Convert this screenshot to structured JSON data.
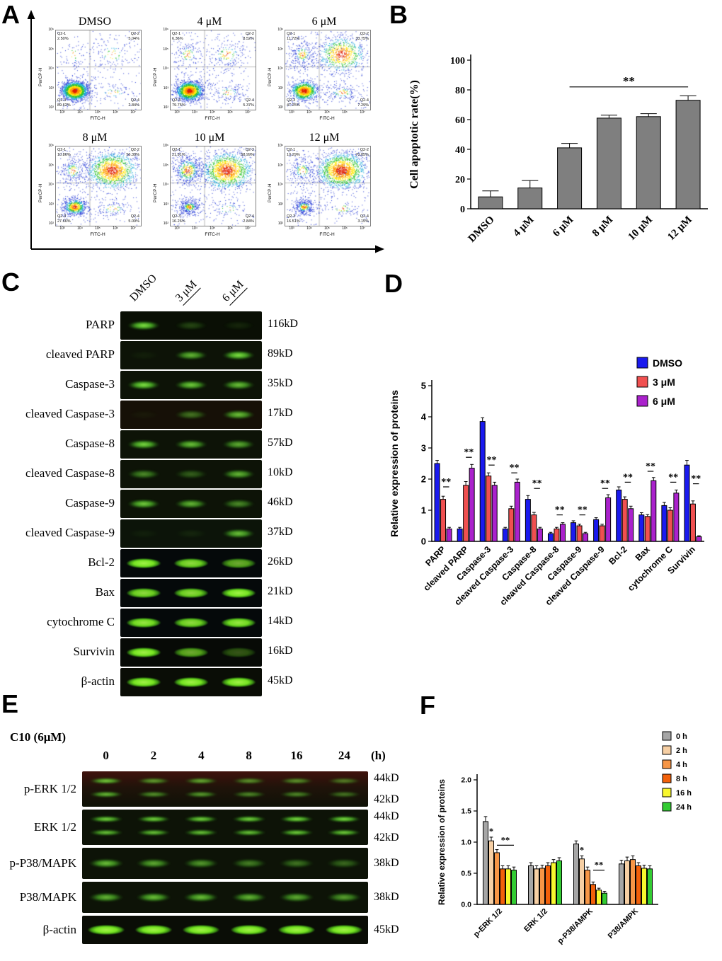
{
  "panels": {
    "A": {
      "label": "A",
      "x_axis_label": "FITC-H",
      "y_axis_label": "PerCP-H",
      "y_ticks": [
        "10⁶",
        "10⁵",
        "10⁴",
        "10³",
        "10²"
      ],
      "x_ticks": [
        "10³",
        "10⁴",
        "10⁵",
        "10⁶",
        "10⁷"
      ],
      "quad_names": [
        "Q2-1",
        "Q2-2",
        "Q2-3",
        "Q2-4"
      ],
      "plots": [
        {
          "title": "DMSO",
          "quads": {
            "Q2-1": "2.50%",
            "Q2-2": "5.04%",
            "Q2-3": "89.62%",
            "Q2-4": "2.84%"
          }
        },
        {
          "title": "4 μM",
          "quads": {
            "Q2-1": "6.36%",
            "Q2-2": "8.52%",
            "Q2-3": "79.75%",
            "Q2-4": "5.37%"
          }
        },
        {
          "title": "6 μM",
          "quads": {
            "Q2-1": "11.72%",
            "Q2-2": "33.75%",
            "Q2-3": "47.25%",
            "Q2-4": "7.29%"
          }
        },
        {
          "title": "8 μM",
          "quads": {
            "Q2-1": "10.86%",
            "Q2-2": "56.39%",
            "Q2-3": "27.66%",
            "Q2-4": "5.09%"
          }
        },
        {
          "title": "10 μM",
          "quads": {
            "Q2-1": "21.91%",
            "Q2-2": "58.99%",
            "Q2-3": "16.26%",
            "Q2-4": "2.84%"
          }
        },
        {
          "title": "12 μM",
          "quads": {
            "Q2-1": "10.29%",
            "Q2-2": "70.05%",
            "Q2-3": "16.51%",
            "Q2-4": "3.15%"
          }
        }
      ]
    },
    "B": {
      "label": "B"
    },
    "C": {
      "label": "C",
      "lanes": [
        "DMSO",
        "3 μM",
        "6 μM"
      ],
      "underline": [
        false,
        true,
        true
      ],
      "rows": [
        {
          "protein": "PARP",
          "kd": "116kD",
          "bands": [
            0.95,
            0.25,
            0.1
          ],
          "style": "smear",
          "bg": "#0a0f05"
        },
        {
          "protein": "cleaved PARP",
          "kd": "89kD",
          "bands": [
            0.05,
            0.75,
            0.95
          ],
          "style": "smear"
        },
        {
          "protein": "Caspase-3",
          "kd": "35kD",
          "bands": [
            0.95,
            0.85,
            0.8
          ],
          "style": "smear"
        },
        {
          "protein": "cleaved Caspase-3",
          "kd": "17kD",
          "bands": [
            0.04,
            0.45,
            0.8
          ],
          "style": "smear",
          "bg": "#161007"
        },
        {
          "protein": "Caspase-8",
          "kd": "57kD",
          "bands": [
            0.9,
            0.8,
            0.7
          ],
          "style": "smear"
        },
        {
          "protein": "cleaved Caspase-8",
          "kd": "10kD",
          "bands": [
            0.55,
            0.35,
            0.75
          ],
          "style": "smear"
        },
        {
          "protein": "Caspase-9",
          "kd": "46kD",
          "bands": [
            0.85,
            0.75,
            0.55
          ],
          "style": "smear"
        },
        {
          "protein": "cleaved Caspase-9",
          "kd": "37kD",
          "bands": [
            0.05,
            0.08,
            0.8
          ],
          "style": "smear",
          "bg": "#0c1409"
        },
        {
          "protein": "Bcl-2",
          "kd": "26kD",
          "bands": [
            0.95,
            0.85,
            0.65
          ],
          "style": "solid",
          "bg": "#05090a"
        },
        {
          "protein": "Bax",
          "kd": "21kD",
          "bands": [
            0.85,
            0.85,
            0.95
          ],
          "style": "solid",
          "bg": "#05090a"
        },
        {
          "protein": "cytochrome C",
          "kd": "14kD",
          "bands": [
            0.9,
            0.85,
            0.9
          ],
          "style": "solid",
          "bg": "#05090a"
        },
        {
          "protein": "Survivin",
          "kd": "16kD",
          "bands": [
            0.95,
            0.65,
            0.3
          ],
          "style": "solid",
          "bg": "#070a06"
        },
        {
          "protein": "β-actin",
          "kd": "45kD",
          "bands": [
            0.95,
            0.95,
            0.95
          ],
          "style": "solid",
          "bg": "#0a0d06"
        }
      ]
    },
    "D": {
      "label": "D"
    },
    "E": {
      "label": "E",
      "treatment": "C10",
      "treatment_dose": "(6μM)",
      "time_points": [
        "0",
        "2",
        "4",
        "8",
        "16",
        "24"
      ],
      "time_unit": "(h)",
      "rows": [
        {
          "protein": "p-ERK 1/2",
          "kd": [
            "44kD",
            "42kD"
          ],
          "double": true,
          "tint": true,
          "bands": [
            0.85,
            0.65,
            0.7,
            0.6,
            0.6,
            0.5
          ]
        },
        {
          "protein": "ERK 1/2",
          "kd": [
            "44kD",
            "42kD"
          ],
          "double": true,
          "bands": [
            0.9,
            0.9,
            0.9,
            0.9,
            0.95,
            0.95
          ]
        },
        {
          "protein": "p-P38/MAPK",
          "kd": [
            "38kD"
          ],
          "bands": [
            0.8,
            0.7,
            0.62,
            0.5,
            0.45,
            0.4
          ]
        },
        {
          "protein": "P38/MAPK",
          "kd": [
            "38kD"
          ],
          "bands": [
            0.75,
            0.8,
            0.8,
            0.75,
            0.7,
            0.65
          ]
        },
        {
          "protein": "β-actin",
          "kd": [
            "45kD"
          ],
          "bands": [
            0.95,
            0.95,
            0.95,
            0.95,
            0.95,
            0.95
          ]
        }
      ]
    },
    "F": {
      "label": "F"
    }
  },
  "chart_data": [
    {
      "id": "B",
      "type": "bar",
      "categories": [
        "DMSO",
        "4 μM",
        "6 μM",
        "8 μM",
        "10 μM",
        "12 μM"
      ],
      "series": [
        {
          "name": "Cell apoptotic rate",
          "color": "#7f7f7f",
          "values": [
            8,
            14,
            41,
            61,
            62,
            73
          ],
          "errors": [
            4,
            5,
            3,
            2,
            2,
            3
          ]
        }
      ],
      "ylabel": "Cell apoptotic rate(%)",
      "ylim": [
        0,
        100
      ],
      "yticks": [
        0,
        20,
        40,
        60,
        80,
        100
      ],
      "annotations": [
        {
          "type": "line",
          "from": [
            2,
            0
          ],
          "to": [
            5,
            0
          ],
          "y": 82,
          "text": "**"
        }
      ]
    },
    {
      "id": "D",
      "type": "grouped-bar",
      "categories": [
        "PARP",
        "cleaved PARP",
        "Caspase-3",
        "cleaved Caspase-3",
        "Caspase-8",
        "cleaved Caspase-8",
        "Caspase-9",
        "cleaved Caspase-9",
        "Bcl-2",
        "Bax",
        "cytochrome C",
        "Survivin"
      ],
      "series": [
        {
          "name": "DMSO",
          "color": "#1a1aee",
          "values": [
            2.5,
            0.4,
            3.85,
            0.4,
            1.35,
            0.25,
            0.6,
            0.7,
            1.65,
            0.85,
            1.15,
            2.45
          ],
          "errors": [
            0.1,
            0.05,
            0.12,
            0.05,
            0.12,
            0.04,
            0.06,
            0.06,
            0.1,
            0.07,
            0.1,
            0.15
          ]
        },
        {
          "name": "3 μM",
          "color": "#f05050",
          "values": [
            1.35,
            1.8,
            2.1,
            1.05,
            0.85,
            0.4,
            0.5,
            0.5,
            1.35,
            0.8,
            1.0,
            1.2
          ],
          "errors": [
            0.1,
            0.12,
            0.1,
            0.08,
            0.08,
            0.05,
            0.05,
            0.05,
            0.08,
            0.06,
            0.08,
            0.1
          ]
        },
        {
          "name": "6 μM",
          "color": "#aa22cc",
          "values": [
            0.4,
            2.35,
            1.8,
            1.9,
            0.4,
            0.55,
            0.25,
            1.4,
            1.05,
            1.95,
            1.55,
            0.15
          ],
          "errors": [
            0.05,
            0.12,
            0.1,
            0.1,
            0.05,
            0.05,
            0.04,
            0.1,
            0.08,
            0.1,
            0.1,
            0.03
          ]
        }
      ],
      "ylabel": "Relative expression of proteins",
      "ylim": [
        0,
        5
      ],
      "yticks": [
        0,
        1,
        2,
        3,
        4,
        5
      ],
      "annotations": [
        {
          "type": "line",
          "from": [
            0,
            1
          ],
          "to": [
            0,
            2
          ],
          "y": 1.75,
          "text": "**"
        },
        {
          "type": "line",
          "from": [
            1,
            1
          ],
          "to": [
            1,
            2
          ],
          "y": 2.7,
          "text": "**"
        },
        {
          "type": "line",
          "from": [
            2,
            1
          ],
          "to": [
            2,
            2
          ],
          "y": 2.45,
          "text": "**"
        },
        {
          "type": "line",
          "from": [
            3,
            1
          ],
          "to": [
            3,
            2
          ],
          "y": 2.2,
          "text": "**"
        },
        {
          "type": "line",
          "from": [
            4,
            1
          ],
          "to": [
            4,
            2
          ],
          "y": 1.7,
          "text": "**"
        },
        {
          "type": "line",
          "from": [
            5,
            1
          ],
          "to": [
            5,
            2
          ],
          "y": 0.85,
          "text": "**"
        },
        {
          "type": "line",
          "from": [
            6,
            1
          ],
          "to": [
            6,
            2
          ],
          "y": 0.85,
          "text": "**"
        },
        {
          "type": "line",
          "from": [
            7,
            1
          ],
          "to": [
            7,
            2
          ],
          "y": 1.7,
          "text": "**"
        },
        {
          "type": "line",
          "from": [
            8,
            1
          ],
          "to": [
            8,
            2
          ],
          "y": 1.9,
          "text": "**"
        },
        {
          "type": "line",
          "from": [
            9,
            1
          ],
          "to": [
            9,
            2
          ],
          "y": 2.25,
          "text": "**"
        },
        {
          "type": "line",
          "from": [
            10,
            1
          ],
          "to": [
            10,
            2
          ],
          "y": 1.9,
          "text": "**"
        },
        {
          "type": "line",
          "from": [
            11,
            1
          ],
          "to": [
            11,
            2
          ],
          "y": 1.85,
          "text": "**"
        }
      ]
    },
    {
      "id": "F",
      "type": "grouped-bar",
      "categories": [
        "p-ERK 1/2",
        "ERK 1/2",
        "p-P38/AMPK",
        "P38/AMPK"
      ],
      "series": [
        {
          "name": "0 h",
          "color": "#a6a6a6",
          "values": [
            1.33,
            0.62,
            0.97,
            0.65
          ],
          "errors": [
            0.08,
            0.05,
            0.05,
            0.06
          ]
        },
        {
          "name": "2 h",
          "color": "#f6cfa4",
          "values": [
            1.02,
            0.57,
            0.73,
            0.7
          ],
          "errors": [
            0.06,
            0.05,
            0.05,
            0.06
          ]
        },
        {
          "name": "4 h",
          "color": "#f79646",
          "values": [
            0.83,
            0.58,
            0.55,
            0.72
          ],
          "errors": [
            0.05,
            0.05,
            0.05,
            0.06
          ]
        },
        {
          "name": "8 h",
          "color": "#f2600a",
          "values": [
            0.57,
            0.62,
            0.32,
            0.62
          ],
          "errors": [
            0.05,
            0.05,
            0.04,
            0.05
          ]
        },
        {
          "name": "16 h",
          "color": "#f8f72e",
          "values": [
            0.57,
            0.67,
            0.23,
            0.58
          ],
          "errors": [
            0.05,
            0.05,
            0.03,
            0.05
          ]
        },
        {
          "name": "24 h",
          "color": "#33cc33",
          "values": [
            0.55,
            0.7,
            0.18,
            0.57
          ],
          "errors": [
            0.05,
            0.05,
            0.03,
            0.05
          ]
        }
      ],
      "ylabel": "Relative expression of proteins",
      "ylim": [
        0,
        2
      ],
      "yticks": [
        0,
        0.5,
        1,
        1.5,
        2
      ],
      "annotations": [
        {
          "type": "star",
          "at": [
            0,
            1
          ],
          "text": "*"
        },
        {
          "type": "line",
          "from": [
            0,
            2
          ],
          "to": [
            0,
            5
          ],
          "y": 0.95,
          "text": "**"
        },
        {
          "type": "star",
          "at": [
            2,
            1
          ],
          "text": "*"
        },
        {
          "type": "line",
          "from": [
            2,
            3
          ],
          "to": [
            2,
            5
          ],
          "y": 0.55,
          "text": "**"
        }
      ]
    }
  ]
}
